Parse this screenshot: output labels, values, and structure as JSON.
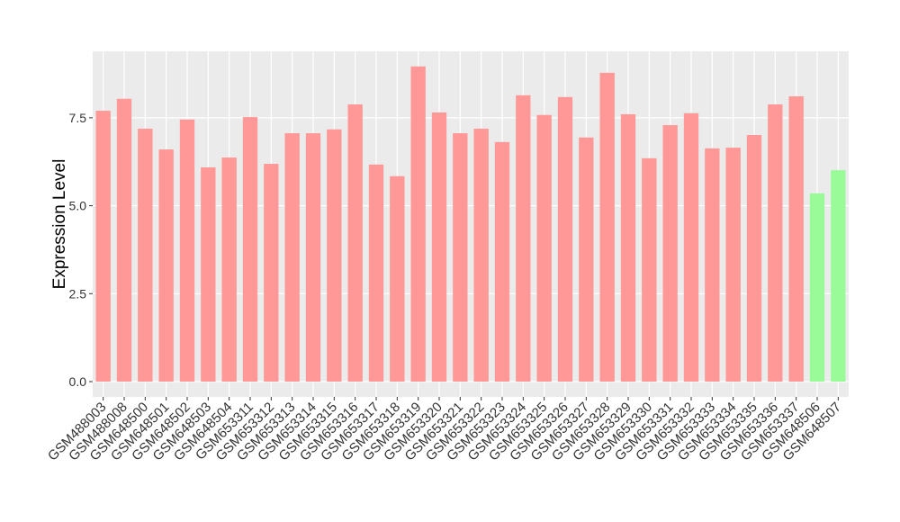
{
  "chart_data": {
    "type": "bar",
    "y_label": "Expression Level",
    "categories": [
      "GSM488003",
      "GSM488008",
      "GSM648500",
      "GSM648501",
      "GSM648502",
      "GSM648503",
      "GSM648504",
      "GSM653311",
      "GSM653312",
      "GSM653313",
      "GSM653314",
      "GSM653315",
      "GSM653316",
      "GSM653317",
      "GSM653318",
      "GSM653319",
      "GSM653320",
      "GSM653321",
      "GSM653322",
      "GSM653323",
      "GSM653324",
      "GSM653325",
      "GSM653326",
      "GSM653327",
      "GSM653328",
      "GSM653329",
      "GSM653330",
      "GSM653331",
      "GSM653332",
      "GSM653333",
      "GSM653334",
      "GSM653335",
      "GSM653336",
      "GSM653337",
      "GSM648506",
      "GSM648507"
    ],
    "values": [
      7.7,
      8.04,
      7.19,
      6.6,
      7.45,
      6.09,
      6.37,
      7.52,
      6.19,
      7.06,
      7.06,
      7.17,
      7.88,
      6.17,
      5.84,
      8.96,
      7.65,
      7.06,
      7.19,
      6.81,
      8.14,
      7.58,
      8.09,
      6.94,
      8.78,
      7.6,
      6.35,
      7.29,
      7.63,
      6.63,
      6.65,
      7.01,
      7.88,
      8.11,
      5.35,
      6.01
    ],
    "colors": [
      "#ff9896",
      "#ff9896",
      "#ff9896",
      "#ff9896",
      "#ff9896",
      "#ff9896",
      "#ff9896",
      "#ff9896",
      "#ff9896",
      "#ff9896",
      "#ff9896",
      "#ff9896",
      "#ff9896",
      "#ff9896",
      "#ff9896",
      "#ff9896",
      "#ff9896",
      "#ff9896",
      "#ff9896",
      "#ff9896",
      "#ff9896",
      "#ff9896",
      "#ff9896",
      "#ff9896",
      "#ff9896",
      "#ff9896",
      "#ff9896",
      "#ff9896",
      "#ff9896",
      "#ff9896",
      "#ff9896",
      "#ff9896",
      "#ff9896",
      "#ff9896",
      "#98fb98",
      "#98fb98"
    ],
    "ylim": [
      -0.435,
      9.39
    ],
    "yticks": [
      {
        "value": 0,
        "label": "0.0"
      },
      2.5,
      {
        "value": 5,
        "label": "5.0"
      },
      7.5
    ],
    "grid": true
  }
}
